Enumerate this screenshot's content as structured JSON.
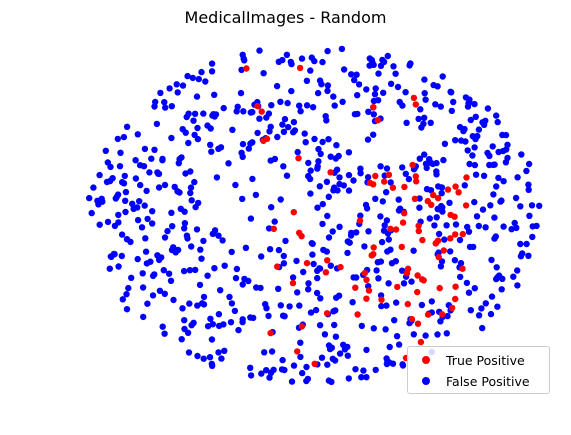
{
  "chart_data": {
    "type": "scatter",
    "title": "MedicalImages - Random",
    "xlabel": "",
    "ylabel": "",
    "axes_visible": false,
    "grid": false,
    "legend_position": "bottom-right",
    "xlim": [
      0,
      100
    ],
    "ylim": [
      0,
      100
    ],
    "series": [
      {
        "name": "True Positive",
        "color": "#ff0000",
        "generator": {
          "seed": 7,
          "count": 95,
          "x_range": [
            35,
            85
          ],
          "y_range": [
            5,
            95
          ],
          "cluster_center": [
            72,
            45
          ]
        }
      },
      {
        "name": "False Positive",
        "color": "#0000ff",
        "generator": {
          "seed": 13,
          "count": 760,
          "x_range": [
            0,
            100
          ],
          "y_range": [
            0,
            100
          ]
        }
      }
    ]
  }
}
